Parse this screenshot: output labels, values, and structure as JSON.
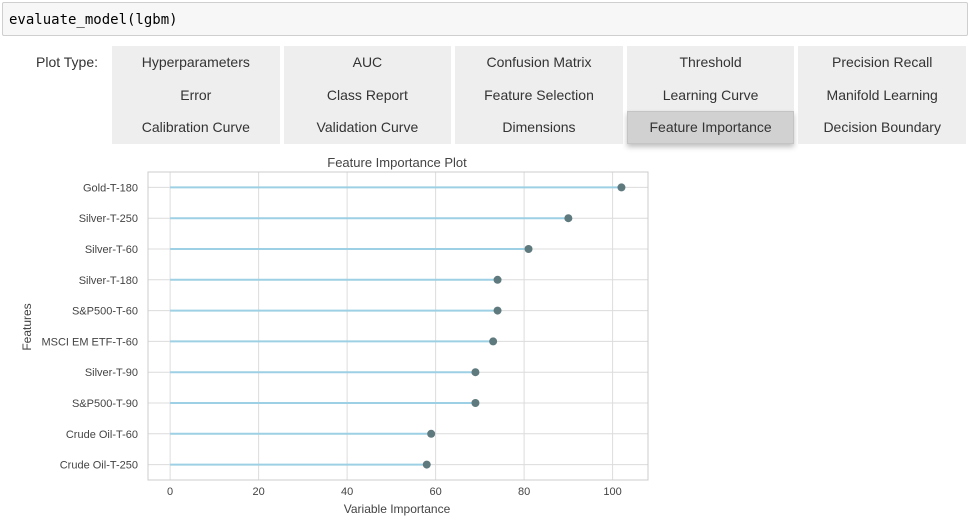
{
  "code_cell": {
    "text": "evaluate_model(lgbm)"
  },
  "plot_type_label": "Plot Type:",
  "buttons": [
    {
      "label": "Hyperparameters",
      "active": false
    },
    {
      "label": "AUC",
      "active": false
    },
    {
      "label": "Confusion Matrix",
      "active": false
    },
    {
      "label": "Threshold",
      "active": false
    },
    {
      "label": "Precision Recall",
      "active": false
    },
    {
      "label": "Error",
      "active": false
    },
    {
      "label": "Class Report",
      "active": false
    },
    {
      "label": "Feature Selection",
      "active": false
    },
    {
      "label": "Learning Curve",
      "active": false
    },
    {
      "label": "Manifold Learning",
      "active": false
    },
    {
      "label": "Calibration Curve",
      "active": false
    },
    {
      "label": "Validation Curve",
      "active": false
    },
    {
      "label": "Dimensions",
      "active": false
    },
    {
      "label": "Feature Importance",
      "active": true
    },
    {
      "label": "Decision Boundary",
      "active": false
    }
  ],
  "chart_data": {
    "type": "lollipop",
    "title": "Feature Importance Plot",
    "xlabel": "Variable Importance",
    "ylabel": "Features",
    "categories": [
      "Gold-T-180",
      "Silver-T-250",
      "Silver-T-60",
      "Silver-T-180",
      "S&P500-T-60",
      "MSCI EM ETF-T-60",
      "Silver-T-90",
      "S&P500-T-90",
      "Crude Oil-T-60",
      "Crude Oil-T-250"
    ],
    "values": [
      102,
      90,
      81,
      74,
      74,
      73,
      69,
      69,
      59,
      58
    ],
    "xticks": [
      0,
      20,
      40,
      60,
      80,
      100
    ],
    "xlim": [
      -5,
      108
    ],
    "grid": true,
    "colors": {
      "line": "#9dd0e4",
      "marker": "#5f7a7e",
      "grid": "#dcdcdc",
      "frame": "#cccccc"
    }
  }
}
